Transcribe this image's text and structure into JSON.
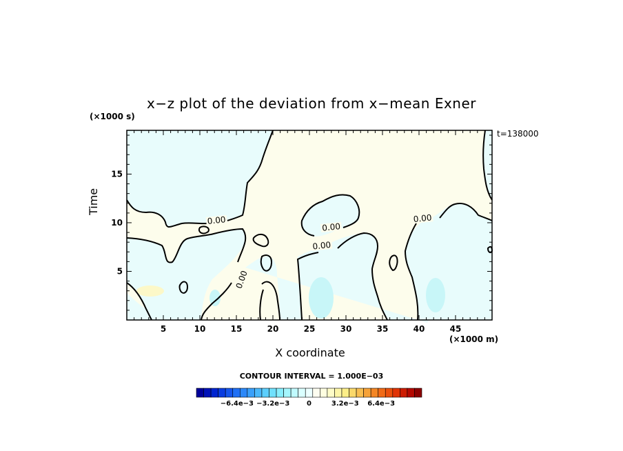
{
  "chart_data": {
    "type": "heatmap",
    "title": "x−z plot of the deviation from x−mean Exner",
    "xlabel": "X coordinate",
    "ylabel": "Time",
    "x_unit": "(×1000 m)",
    "y_unit": "(×1000 s)",
    "time_label": "t=138000",
    "xlim": [
      0,
      50
    ],
    "ylim": [
      0,
      19.5
    ],
    "x_ticks": [
      "5",
      "10",
      "15",
      "20",
      "25",
      "30",
      "35",
      "40",
      "45"
    ],
    "x_tick_values": [
      5,
      10,
      15,
      20,
      25,
      30,
      35,
      40,
      45
    ],
    "y_ticks": [
      "5",
      "10",
      "15"
    ],
    "y_tick_values": [
      5,
      10,
      15
    ],
    "contour_labels": [
      {
        "text": "0.00",
        "x": 12.3,
        "y": 10.1
      },
      {
        "text": "0.00",
        "x": 28.0,
        "y": 9.4
      },
      {
        "text": "0.00",
        "x": 26.7,
        "y": 7.5
      },
      {
        "text": "0.00",
        "x": 15.9,
        "y": 4.1
      },
      {
        "text": "0.00",
        "x": 40.5,
        "y": 10.3
      }
    ],
    "contour_interval_text": "CONTOUR INTERVAL = 1.000E−03",
    "colorbar": {
      "min": -0.01,
      "max": 0.01,
      "tick_labels": [
        "−6.4e−3",
        "−3.2e−3",
        "0",
        "3.2e−3",
        "6.4e−3"
      ],
      "tick_values": [
        -0.0064,
        -0.0032,
        0,
        0.0032,
        0.0064
      ],
      "colors": [
        "#00009a",
        "#0012b8",
        "#0024d0",
        "#0a3ce0",
        "#1656ec",
        "#2070f4",
        "#2c88f8",
        "#3aa0fa",
        "#4ab8fb",
        "#5ccefc",
        "#70e0fd",
        "#88eefd",
        "#a4f6fd",
        "#c0fafe",
        "#daffff",
        "#ecffff",
        "#fdfdf0",
        "#fefee0",
        "#fefcc8",
        "#fdf6a8",
        "#fcee88",
        "#fad86a",
        "#f8be50",
        "#f6a238",
        "#f48624",
        "#f06a16",
        "#ea500c",
        "#e03406",
        "#cc1c02",
        "#b40800",
        "#8c0000"
      ]
    },
    "colors": {
      "positive_region": "#fdfdec",
      "negative_region": "#e8fcfc",
      "strong_negative": "#c8f6f8",
      "strong_positive": "#fcf8c8"
    }
  }
}
